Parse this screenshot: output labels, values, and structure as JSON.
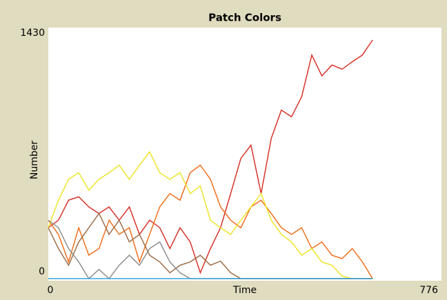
{
  "chart_data": {
    "type": "line",
    "title": "Patch Colors",
    "xlabel": "Time",
    "ylabel": "Number",
    "xlim": [
      0,
      776
    ],
    "ylim": [
      0,
      1430
    ],
    "xticks": [
      0,
      776
    ],
    "yticks": [
      0,
      1430
    ],
    "x": [
      0,
      20,
      40,
      60,
      80,
      100,
      120,
      140,
      160,
      180,
      200,
      220,
      240,
      260,
      280,
      300,
      320,
      340,
      360,
      380,
      400,
      420,
      440,
      460,
      480,
      500,
      520,
      540,
      560,
      580,
      600,
      620,
      640
    ],
    "series": [
      {
        "name": "red",
        "color": "#d73229",
        "values": [
          305,
          350,
          470,
          490,
          430,
          390,
          430,
          350,
          430,
          265,
          350,
          305,
          180,
          305,
          220,
          35,
          180,
          305,
          510,
          720,
          800,
          510,
          840,
          1010,
          970,
          1090,
          1340,
          1215,
          1280,
          1255,
          1300,
          1340,
          1430
        ]
      },
      {
        "name": "orange",
        "color": "#f06f1c",
        "values": [
          350,
          265,
          100,
          305,
          140,
          180,
          350,
          265,
          305,
          100,
          265,
          430,
          510,
          470,
          635,
          680,
          595,
          430,
          350,
          305,
          430,
          470,
          390,
          305,
          265,
          305,
          180,
          220,
          140,
          120,
          180,
          100,
          0
        ]
      },
      {
        "name": "yellow",
        "color": "#ede42a",
        "values": [
          305,
          470,
          595,
          635,
          530,
          595,
          635,
          680,
          595,
          680,
          760,
          635,
          595,
          635,
          510,
          555,
          350,
          305,
          265,
          350,
          430,
          510,
          350,
          265,
          220,
          140,
          180,
          100,
          80,
          15,
          0,
          0,
          0
        ]
      },
      {
        "name": "brown",
        "color": "#9d6e48",
        "values": [
          305,
          180,
          80,
          220,
          305,
          390,
          265,
          350,
          220,
          265,
          140,
          100,
          35,
          80,
          100,
          140,
          80,
          105,
          35,
          0,
          0,
          0,
          0,
          0,
          0,
          0,
          0,
          0,
          0,
          0,
          0,
          0,
          0
        ]
      },
      {
        "name": "gray",
        "color": "#8d8d8d",
        "values": [
          350,
          305,
          180,
          100,
          0,
          55,
          0,
          80,
          140,
          80,
          180,
          220,
          100,
          35,
          0,
          0,
          0,
          0,
          0,
          0,
          0,
          0,
          0,
          0,
          0,
          0,
          0,
          0,
          0,
          0,
          0,
          0,
          0
        ]
      },
      {
        "name": "sky",
        "color": "#34a3d8",
        "values": [
          0,
          0,
          0,
          0,
          0,
          0,
          0,
          0,
          0,
          0,
          0,
          0,
          0,
          0,
          0,
          0,
          0,
          0,
          0,
          0,
          0,
          0,
          0,
          0,
          0,
          0,
          0,
          0,
          0,
          0,
          0,
          0,
          0
        ]
      }
    ]
  }
}
